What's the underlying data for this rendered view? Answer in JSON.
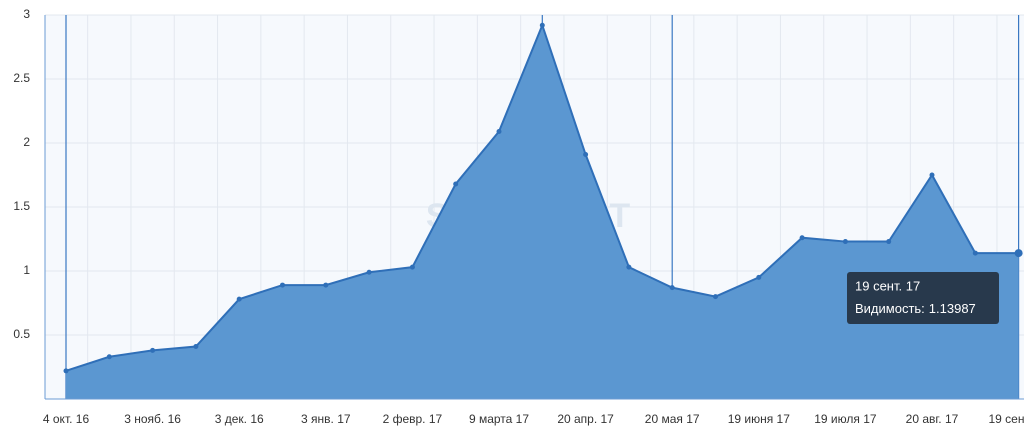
{
  "chart_data": {
    "type": "area",
    "watermark": "SERPSTAT",
    "categories": [
      "4 окт. 16",
      null,
      "3 нояб. 16",
      null,
      "3 дек. 16",
      null,
      "3 янв. 17",
      null,
      "2 февр. 17",
      null,
      "9 марта 17",
      null,
      "20 апр. 17",
      null,
      "20 мая 17",
      null,
      "19 июня 17",
      null,
      "19 июля 17",
      null,
      "20 авг. 17",
      null,
      "19 сент. 17"
    ],
    "values": [
      0.22,
      0.33,
      0.38,
      0.41,
      0.78,
      0.89,
      0.89,
      0.99,
      1.03,
      1.68,
      2.09,
      2.92,
      1.91,
      1.03,
      0.87,
      0.8,
      0.95,
      1.26,
      1.23,
      1.23,
      1.75,
      1.14,
      1.13987
    ],
    "color": "#5b97d1",
    "ylim": [
      0,
      3
    ],
    "yticks": [
      0.5,
      1,
      {
        "value": 1.5,
        "label": "1.5"
      },
      2,
      2.5,
      3
    ],
    "grid": true,
    "tooltip": {
      "title": "19 сент. 17",
      "label": "Видимость:"
    }
  }
}
